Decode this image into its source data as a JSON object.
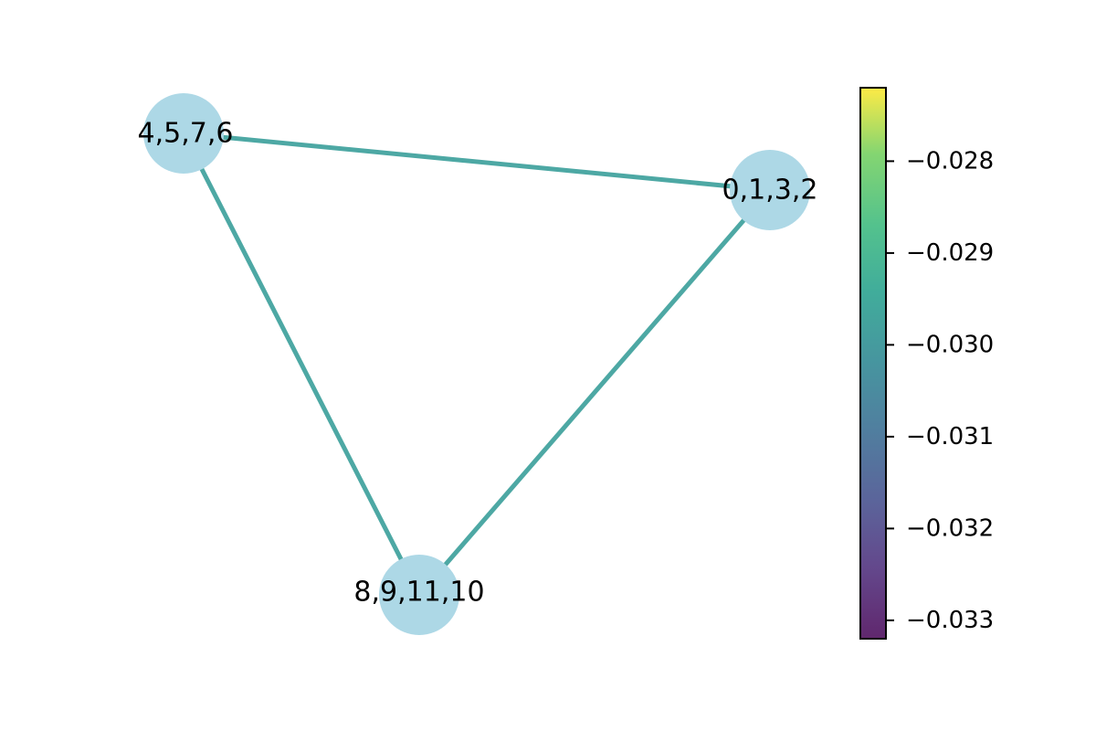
{
  "graph": {
    "nodes": [
      {
        "id": "n-4567",
        "label": "4,5,7,6"
      },
      {
        "id": "n-0132",
        "label": "0,1,3,2"
      },
      {
        "id": "n-891110",
        "label": "8,9,11,10"
      }
    ],
    "edges": [
      {
        "source": "n-4567",
        "target": "n-0132",
        "value": -0.0301
      },
      {
        "source": "n-4567",
        "target": "n-891110",
        "value": -0.0301
      },
      {
        "source": "n-0132",
        "target": "n-891110",
        "value": -0.0301
      }
    ],
    "node_color": "#add8e6",
    "edge_color": "#4da8a4"
  },
  "colorbar": {
    "colormap": "viridis",
    "range": [
      -0.0332,
      -0.0272
    ],
    "ticks": [
      {
        "value": -0.028,
        "label": "−0.028"
      },
      {
        "value": -0.029,
        "label": "−0.029"
      },
      {
        "value": -0.03,
        "label": "−0.030"
      },
      {
        "value": -0.031,
        "label": "−0.031"
      },
      {
        "value": -0.032,
        "label": "−0.032"
      },
      {
        "value": -0.033,
        "label": "−0.033"
      }
    ]
  }
}
